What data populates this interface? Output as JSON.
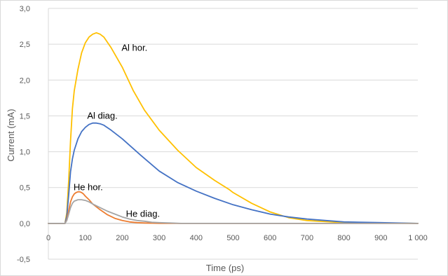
{
  "chart_data": {
    "type": "line",
    "xlabel": "Time (ps)",
    "ylabel": "Current (mA)",
    "xlim": [
      0,
      1000
    ],
    "ylim": [
      -0.5,
      3.0
    ],
    "xticks": [
      0,
      100,
      200,
      300,
      400,
      500,
      600,
      700,
      800,
      900,
      1000
    ],
    "xtick_labels": [
      "0",
      "100",
      "200",
      "300",
      "400",
      "500",
      "600",
      "700",
      "800",
      "900",
      "1 000"
    ],
    "yticks": [
      -0.5,
      0.0,
      0.5,
      1.0,
      1.5,
      2.0,
      2.5,
      3.0
    ],
    "ytick_labels": [
      "-0,5",
      "0,0",
      "0,5",
      "1,0",
      "1,5",
      "2,0",
      "2,5",
      "3,0"
    ],
    "grid": true,
    "legend": "none",
    "series": [
      {
        "name": "Al hor.",
        "color": "#FFC000",
        "x": [
          0,
          45,
          50,
          55,
          60,
          65,
          70,
          80,
          90,
          100,
          110,
          120,
          130,
          140,
          150,
          170,
          200,
          230,
          260,
          300,
          350,
          400,
          450,
          490,
          500,
          550,
          600,
          650,
          700,
          800,
          900,
          1000
        ],
        "y": [
          0,
          0,
          0.15,
          0.6,
          1.15,
          1.6,
          1.85,
          2.15,
          2.38,
          2.52,
          2.6,
          2.64,
          2.66,
          2.64,
          2.6,
          2.45,
          2.18,
          1.85,
          1.58,
          1.3,
          1.02,
          0.78,
          0.6,
          0.47,
          0.43,
          0.28,
          0.16,
          0.08,
          0.04,
          0.01,
          0.005,
          0
        ]
      },
      {
        "name": "Al diag.",
        "color": "#4472C4",
        "x": [
          0,
          45,
          50,
          55,
          60,
          65,
          70,
          80,
          90,
          100,
          110,
          120,
          130,
          140,
          150,
          170,
          200,
          250,
          300,
          350,
          400,
          450,
          500,
          550,
          600,
          650,
          700,
          800,
          900,
          1000
        ],
        "y": [
          0,
          0,
          0.1,
          0.4,
          0.72,
          0.9,
          1.02,
          1.18,
          1.28,
          1.34,
          1.38,
          1.4,
          1.4,
          1.39,
          1.37,
          1.3,
          1.18,
          0.95,
          0.73,
          0.57,
          0.45,
          0.35,
          0.26,
          0.19,
          0.13,
          0.09,
          0.06,
          0.02,
          0.01,
          0
        ]
      },
      {
        "name": "He hor.",
        "color": "#ED7D31",
        "x": [
          0,
          45,
          50,
          55,
          60,
          65,
          70,
          75,
          80,
          85,
          90,
          95,
          100,
          110,
          120,
          140,
          160,
          180,
          200,
          220,
          240,
          260,
          300,
          350,
          1000
        ],
        "y": [
          0,
          0,
          0.05,
          0.18,
          0.3,
          0.37,
          0.41,
          0.43,
          0.44,
          0.44,
          0.43,
          0.41,
          0.38,
          0.33,
          0.27,
          0.19,
          0.12,
          0.07,
          0.04,
          0.02,
          0.01,
          0.005,
          0,
          0,
          0
        ]
      },
      {
        "name": "He diag.",
        "color": "#A5A5A5",
        "x": [
          0,
          45,
          50,
          55,
          60,
          65,
          70,
          80,
          90,
          100,
          110,
          120,
          140,
          160,
          180,
          200,
          220,
          240,
          260,
          280,
          300,
          330,
          360,
          1000
        ],
        "y": [
          0,
          0,
          0.04,
          0.13,
          0.22,
          0.28,
          0.31,
          0.33,
          0.33,
          0.32,
          0.3,
          0.27,
          0.22,
          0.17,
          0.13,
          0.09,
          0.06,
          0.04,
          0.03,
          0.015,
          0.01,
          0.005,
          0,
          0
        ]
      }
    ],
    "annotations": [
      {
        "text": "Al hor.",
        "x": 198,
        "y": 2.45
      },
      {
        "text": "Al diag.",
        "x": 105,
        "y": 1.5
      },
      {
        "text": "He hor.",
        "x": 68,
        "y": 0.5
      },
      {
        "text": "He diag.",
        "x": 210,
        "y": 0.13
      }
    ]
  }
}
